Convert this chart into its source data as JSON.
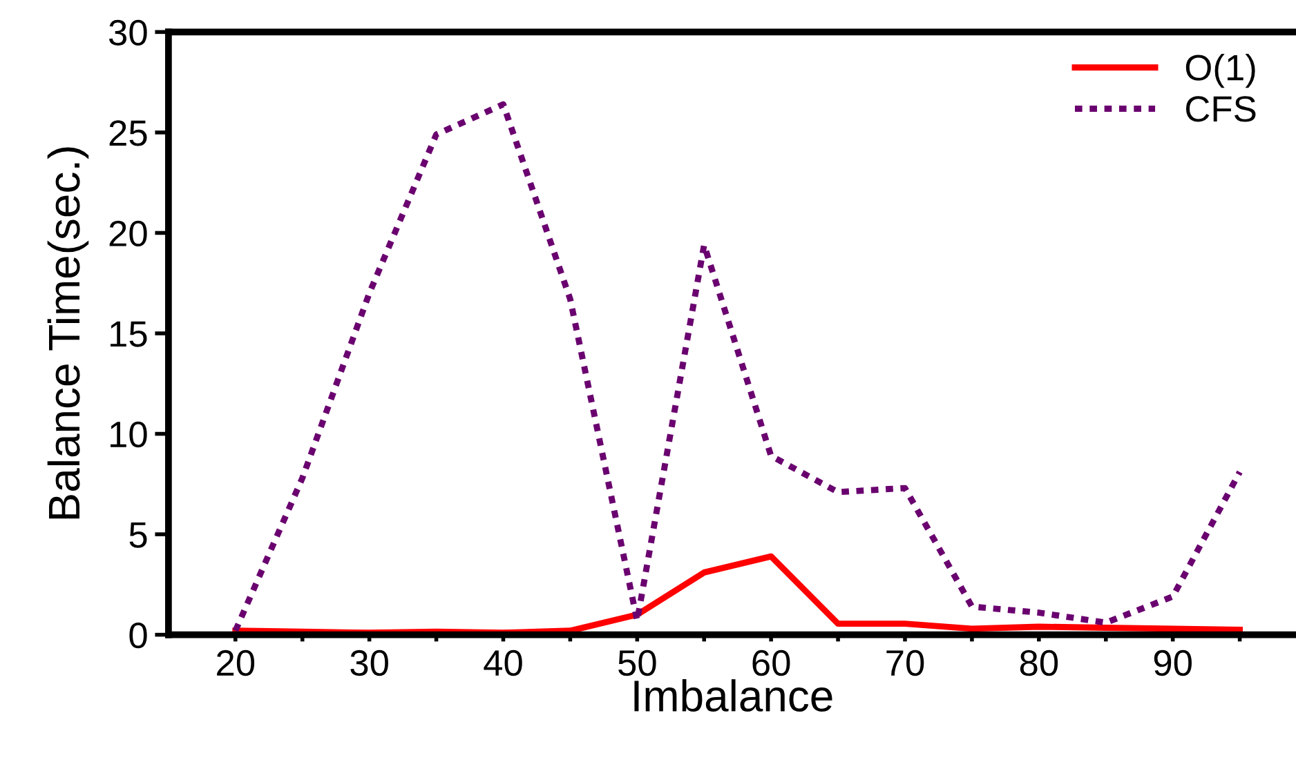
{
  "chart_data": {
    "type": "line",
    "xlabel": "Imbalance",
    "ylabel": "Balance Time(sec.)",
    "x": [
      20,
      25,
      30,
      35,
      40,
      45,
      50,
      55,
      60,
      65,
      70,
      75,
      80,
      85,
      90,
      95
    ],
    "series": [
      {
        "name": "O(1)",
        "color": "#ff0000",
        "line_style": "solid",
        "values": [
          0.2,
          0.15,
          0.1,
          0.15,
          0.1,
          0.2,
          1.0,
          3.1,
          3.9,
          0.55,
          0.55,
          0.3,
          0.4,
          0.35,
          0.3,
          0.25
        ]
      },
      {
        "name": "CFS",
        "color": "#6a006f",
        "line_style": "dotted",
        "values": [
          0.2,
          7.8,
          17.0,
          24.9,
          26.4,
          16.7,
          0.7,
          19.4,
          8.9,
          7.1,
          7.3,
          1.4,
          1.1,
          0.6,
          1.9,
          8.1
        ]
      }
    ],
    "xlim": [
      15,
      99.2
    ],
    "xticks": [
      20,
      {
        "value": 25,
        "label": null
      },
      30,
      {
        "value": 35,
        "label": null
      },
      40,
      {
        "value": 45,
        "label": null
      },
      50,
      {
        "value": 55,
        "label": null
      },
      60,
      {
        "value": 65,
        "label": null
      },
      70,
      {
        "value": 75,
        "label": null
      },
      80,
      {
        "value": 85,
        "label": null
      },
      90,
      {
        "value": 95,
        "label": null
      }
    ],
    "ylim": [
      0,
      30
    ],
    "yticks": [
      0,
      5,
      10,
      15,
      20,
      25,
      30
    ],
    "grid": false,
    "legend": "top right",
    "marker": "none"
  }
}
